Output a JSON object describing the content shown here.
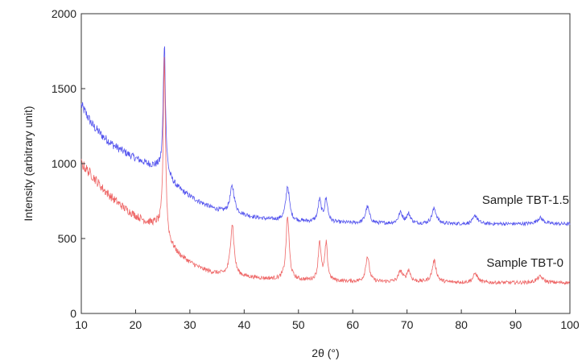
{
  "chart_data": {
    "type": "line",
    "xlabel": "2θ (°)",
    "ylabel": "Intensity (arbitrary unit)",
    "xlim": [
      10,
      100
    ],
    "ylim": [
      0,
      2000
    ],
    "xticks": [
      10,
      20,
      30,
      40,
      50,
      60,
      70,
      80,
      90,
      100
    ],
    "yticks": [
      0,
      500,
      1000,
      1500,
      2000
    ],
    "grid": false,
    "legend": "inline labels beside each series",
    "series": [
      {
        "name": "Sample TBT-1.5",
        "color": "#5555ee",
        "baseline": [
          [
            10,
            1390
          ],
          [
            12,
            1260
          ],
          [
            14,
            1180
          ],
          [
            16,
            1120
          ],
          [
            18,
            1075
          ],
          [
            20,
            1035
          ],
          [
            22,
            1000
          ],
          [
            24,
            975
          ],
          [
            26,
            900
          ],
          [
            28,
            830
          ],
          [
            30,
            780
          ],
          [
            32,
            740
          ],
          [
            34,
            705
          ],
          [
            36,
            680
          ],
          [
            38,
            665
          ],
          [
            40,
            655
          ],
          [
            42,
            640
          ],
          [
            44,
            630
          ],
          [
            46,
            625
          ],
          [
            48,
            620
          ],
          [
            50,
            615
          ],
          [
            52,
            612
          ],
          [
            54,
            610
          ],
          [
            56,
            607
          ],
          [
            58,
            605
          ],
          [
            60,
            603
          ],
          [
            62,
            600
          ],
          [
            64,
            600
          ],
          [
            66,
            600
          ],
          [
            68,
            600
          ],
          [
            70,
            600
          ],
          [
            72,
            598
          ],
          [
            74,
            598
          ],
          [
            76,
            598
          ],
          [
            78,
            597
          ],
          [
            80,
            597
          ],
          [
            82,
            597
          ],
          [
            84,
            597
          ],
          [
            86,
            597
          ],
          [
            88,
            597
          ],
          [
            90,
            597
          ],
          [
            92,
            597
          ],
          [
            94,
            597
          ],
          [
            96,
            597
          ],
          [
            98,
            597
          ],
          [
            100,
            597
          ]
        ],
        "peaks": [
          [
            25.3,
            880,
            0.25
          ],
          [
            37.8,
            180,
            0.5
          ],
          [
            48.0,
            230,
            0.4
          ],
          [
            53.9,
            140,
            0.35
          ],
          [
            55.1,
            150,
            0.35
          ],
          [
            62.7,
            110,
            0.45
          ],
          [
            68.8,
            70,
            0.45
          ],
          [
            70.3,
            60,
            0.45
          ],
          [
            75.0,
            100,
            0.5
          ],
          [
            82.6,
            55,
            0.5
          ],
          [
            94.5,
            40,
            0.7
          ]
        ]
      },
      {
        "name": "Sample TBT-0",
        "color": "#ee6666",
        "baseline": [
          [
            10,
            1000
          ],
          [
            12,
            920
          ],
          [
            14,
            830
          ],
          [
            16,
            760
          ],
          [
            18,
            700
          ],
          [
            20,
            650
          ],
          [
            22,
            610
          ],
          [
            24,
            590
          ],
          [
            26,
            470
          ],
          [
            28,
            390
          ],
          [
            30,
            340
          ],
          [
            32,
            300
          ],
          [
            34,
            275
          ],
          [
            36,
            260
          ],
          [
            38,
            250
          ],
          [
            40,
            245
          ],
          [
            42,
            238
          ],
          [
            44,
            232
          ],
          [
            46,
            228
          ],
          [
            48,
            225
          ],
          [
            50,
            222
          ],
          [
            52,
            220
          ],
          [
            54,
            218
          ],
          [
            56,
            216
          ],
          [
            58,
            214
          ],
          [
            60,
            212
          ],
          [
            62,
            210
          ],
          [
            64,
            210
          ],
          [
            66,
            210
          ],
          [
            68,
            210
          ],
          [
            70,
            210
          ],
          [
            72,
            210
          ],
          [
            74,
            210
          ],
          [
            76,
            208
          ],
          [
            78,
            207
          ],
          [
            80,
            206
          ],
          [
            82,
            206
          ],
          [
            84,
            205
          ],
          [
            86,
            205
          ],
          [
            88,
            205
          ],
          [
            90,
            205
          ],
          [
            92,
            205
          ],
          [
            94,
            205
          ],
          [
            96,
            205
          ],
          [
            98,
            205
          ],
          [
            100,
            205
          ]
        ],
        "peaks": [
          [
            25.3,
            1200,
            0.25
          ],
          [
            37.8,
            350,
            0.4
          ],
          [
            48.0,
            420,
            0.35
          ],
          [
            53.9,
            260,
            0.3
          ],
          [
            55.1,
            240,
            0.3
          ],
          [
            62.7,
            170,
            0.4
          ],
          [
            68.8,
            70,
            0.45
          ],
          [
            70.3,
            75,
            0.4
          ],
          [
            75.0,
            140,
            0.45
          ],
          [
            82.6,
            60,
            0.5
          ],
          [
            94.5,
            40,
            0.7
          ]
        ]
      }
    ]
  }
}
